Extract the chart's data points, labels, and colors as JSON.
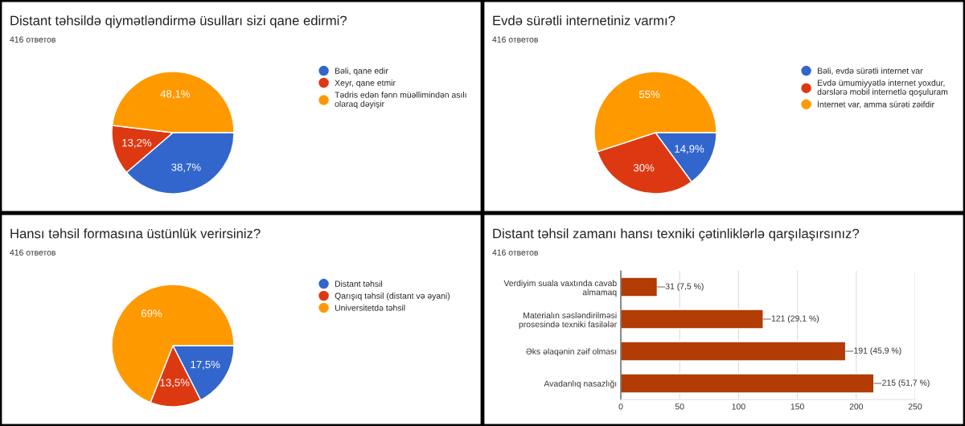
{
  "chart_data": [
    {
      "type": "pie",
      "title": "Distant təhsildə qiymətləndirmə üsulları sizi qane edirmi?",
      "subtitle": "416 ответов",
      "categories": [
        "Bəli, qane edir",
        "Xeyr, qane etmir",
        "Tədris edən fənn müəllimindən asılı\nolaraq dəyişir"
      ],
      "values": [
        38.7,
        13.2,
        48.1
      ],
      "value_labels": [
        "38,7%",
        "13,2%",
        "48,1%"
      ],
      "colors": [
        "#3366cc",
        "#dc3912",
        "#ff9900"
      ],
      "legend": "right"
    },
    {
      "type": "pie",
      "title": "Evdə sürətli internetiniz varmı?",
      "subtitle": "416 ответов",
      "categories": [
        "Bəli, evdə sürətli internet var",
        "Evdə ümumiyyətlə internet yoxdur,\ndərslərə mobil internetlə qoşuluram",
        "İnternet var, amma sürəti zəifdir"
      ],
      "values": [
        14.9,
        30,
        55
      ],
      "value_labels": [
        "14,9%",
        "30%",
        "55%"
      ],
      "colors": [
        "#3366cc",
        "#dc3912",
        "#ff9900"
      ],
      "legend": "right"
    },
    {
      "type": "pie",
      "title": "Hansı təhsil formasına üstünlük verirsiniz?",
      "subtitle": "416 ответов",
      "categories": [
        "Distant təhsil",
        "Qarışıq təhsil (distant və əyani)",
        "Universitetdə təhsil"
      ],
      "values": [
        17.5,
        13.5,
        69
      ],
      "value_labels": [
        "17,5%",
        "13,5%",
        "69%"
      ],
      "colors": [
        "#3366cc",
        "#dc3912",
        "#ff9900"
      ],
      "legend": "right"
    },
    {
      "type": "bar",
      "orientation": "horizontal",
      "title": "Distant təhsil zamanı hansı texniki çətinliklərlə qarşılaşırsınız?",
      "subtitle": "416 ответов",
      "categories": [
        "Verdiyim suala vaxtında cavab\nalmamaq",
        "Materialın səsləndirilməsi\nprosesində texniki fasilələr",
        "Əks əlaqənin zəif olması",
        "Avadanlıq nasazlığı"
      ],
      "values": [
        31,
        121,
        191,
        215
      ],
      "value_labels": [
        "31 (7,5 %)",
        "121 (29,1 %)",
        "191 (45,9 %)",
        "215 (51,7 %)"
      ],
      "color": "#b23c04",
      "xlim": [
        0,
        250
      ],
      "xticks": [
        0,
        50,
        100,
        150,
        200,
        250
      ],
      "grid": "x"
    }
  ]
}
